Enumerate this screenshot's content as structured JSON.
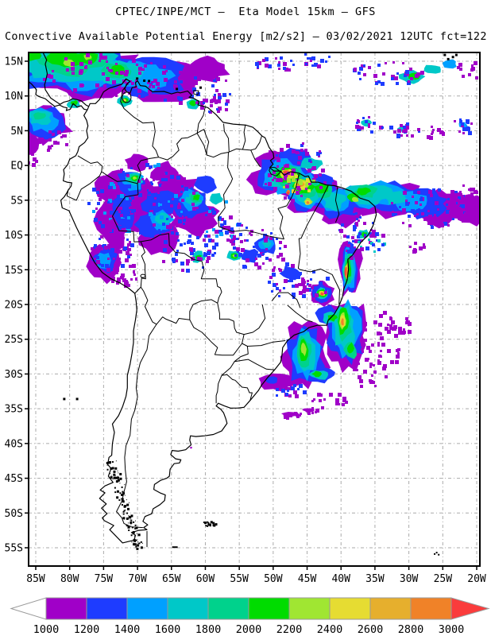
{
  "header": {
    "title": "CPTEC/INPE/MCT –  Eta Model 15km – GFS",
    "subtitle": "Convective Available Potential Energy [m2/s2] – 03/02/2021 12UTC fct=122"
  },
  "map": {
    "lat_labels": [
      "15N",
      "10N",
      "5N",
      "EQ",
      "5S",
      "10S",
      "15S",
      "20S",
      "25S",
      "30S",
      "35S",
      "40S",
      "45S",
      "50S",
      "55S"
    ],
    "lon_labels": [
      "85W",
      "80W",
      "75W",
      "70W",
      "65W",
      "60W",
      "55W",
      "50W",
      "45W",
      "40W",
      "35W",
      "30W",
      "25W",
      "20W"
    ]
  },
  "colorbar": {
    "labels": [
      "1000",
      "1200",
      "1400",
      "1600",
      "1800",
      "2000",
      "2200",
      "2400",
      "2600",
      "2800",
      "3000"
    ],
    "colors": [
      "#A000C8",
      "#1E3CFF",
      "#00A0FF",
      "#00C8C8",
      "#00D28C",
      "#00DC00",
      "#A0E632",
      "#E6DC32",
      "#E6AF2D",
      "#F08228",
      "#FA3C3C"
    ],
    "below_color": "#FFFFFF",
    "above_color": "#FA3C3C"
  },
  "chart_data": {
    "type": "heatmap",
    "title": "CPTEC/INPE/MCT –  Eta Model 15km – GFS",
    "variable": "Convective Available Potential Energy",
    "units": "m2/s2",
    "valid": "03/02/2021 12UTC",
    "forecast": "fct=122",
    "x_ticks": [
      "85W",
      "80W",
      "75W",
      "70W",
      "65W",
      "60W",
      "55W",
      "50W",
      "45W",
      "40W",
      "35W",
      "30W",
      "25W",
      "20W"
    ],
    "y_ticks": [
      "15N",
      "10N",
      "5N",
      "EQ",
      "5S",
      "10S",
      "15S",
      "20S",
      "25S",
      "30S",
      "35S",
      "40S",
      "45S",
      "50S",
      "55S"
    ],
    "levels": [
      1000,
      1200,
      1400,
      1600,
      1800,
      2000,
      2200,
      2400,
      2600,
      2800,
      3000
    ],
    "palette": [
      "#A000C8",
      "#1E3CFF",
      "#00A0FF",
      "#00C8C8",
      "#00D28C",
      "#00DC00",
      "#A0E632",
      "#E6DC32",
      "#E6AF2D",
      "#F08228",
      "#FA3C3C"
    ],
    "legend_position": "bottom",
    "grid": "dotted 5-degree graticule",
    "features": [
      {
        "region": "Caribbean / far-northern South America (15N-9N, 85W-55W)",
        "cape_range": "1000-2400"
      },
      {
        "region": "Western Amazon: Colombia / Peru / NW Brazil (2N-15S, 77W-57W)",
        "cape_range": "1000-2200"
      },
      {
        "region": "NE Brazil near the equator (51W-44W, 1N-6S)",
        "cape_range": "1000-3000+"
      },
      {
        "region": "Tropical Atlantic band along 4S-8S out to 20W",
        "cape_range": "1000-2000"
      },
      {
        "region": "Bahia coastal strip (39W, 12S-18S)",
        "cape_range": "1000-3000+"
      },
      {
        "region": "Southwest Atlantic off SE Brazil (47W-33W, 20S-34S)",
        "cape_range": "1000-2800"
      }
    ]
  }
}
